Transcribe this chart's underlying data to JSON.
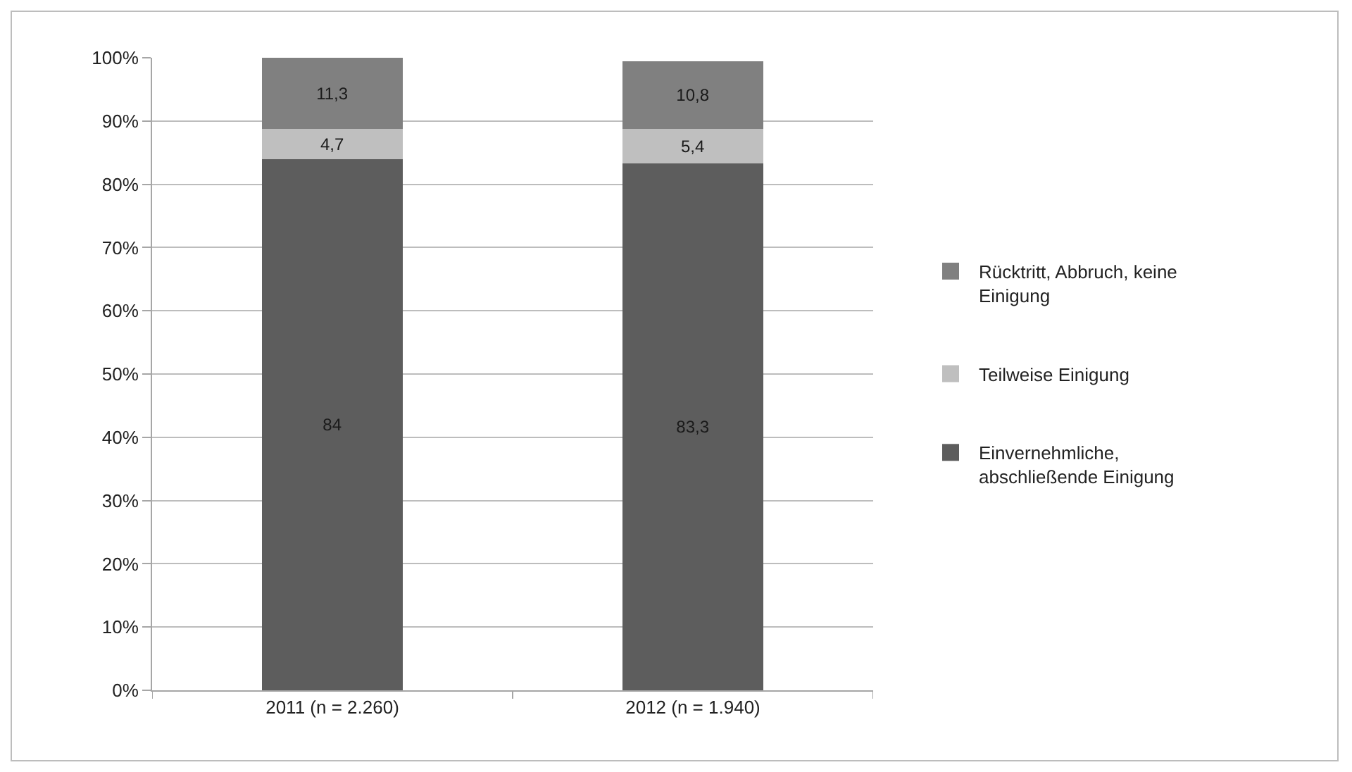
{
  "chart_data": {
    "type": "bar",
    "stacked": true,
    "categories": [
      "2011 (n = 2.260)",
      "2012 (n = 1.940)"
    ],
    "series": [
      {
        "name": "Einvernehmliche, abschließende Einigung",
        "color": "#5d5d5d",
        "values": [
          84,
          83.3
        ],
        "value_labels": [
          "84",
          "83,3"
        ]
      },
      {
        "name": "Teilweise Einigung",
        "color": "#bfbfbf",
        "values": [
          4.7,
          5.4
        ],
        "value_labels": [
          "4,7",
          "5,4"
        ]
      },
      {
        "name": "Rücktritt, Abbruch, keine Einigung",
        "color": "#808080",
        "values": [
          11.3,
          10.8
        ],
        "value_labels": [
          "11,3",
          "10,8"
        ]
      }
    ],
    "ylim": [
      0,
      100
    ],
    "yticks": [
      {
        "value": 0,
        "label": "0%"
      },
      {
        "value": 10,
        "label": "10%"
      },
      {
        "value": 20,
        "label": "20%"
      },
      {
        "value": 30,
        "label": "30%"
      },
      {
        "value": 40,
        "label": "40%"
      },
      {
        "value": 50,
        "label": "50%"
      },
      {
        "value": 60,
        "label": "60%"
      },
      {
        "value": 70,
        "label": "70%"
      },
      {
        "value": 80,
        "label": "80%"
      },
      {
        "value": 90,
        "label": "90%"
      },
      {
        "value": 100,
        "label": "100%"
      }
    ],
    "grid": "y",
    "legend": "right"
  }
}
